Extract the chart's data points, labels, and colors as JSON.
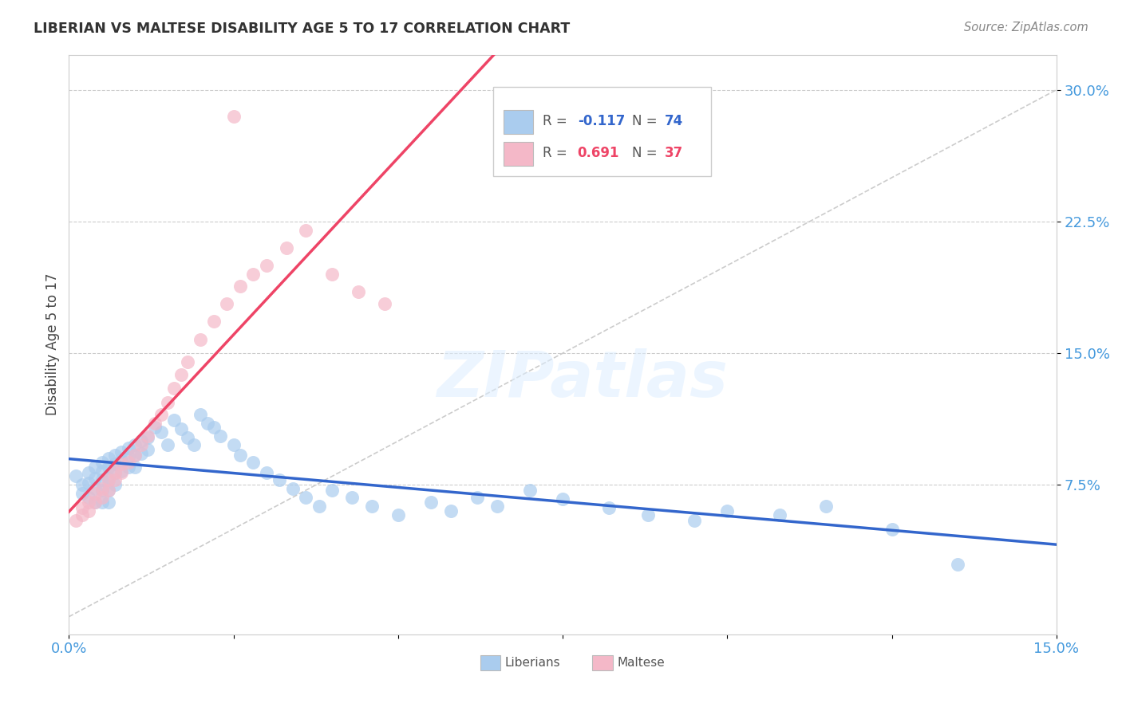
{
  "title": "LIBERIAN VS MALTESE DISABILITY AGE 5 TO 17 CORRELATION CHART",
  "source": "Source: ZipAtlas.com",
  "ylabel": "Disability Age 5 to 17",
  "xlim": [
    0.0,
    0.15
  ],
  "ylim": [
    -0.01,
    0.32
  ],
  "ytick_vals": [
    0.075,
    0.15,
    0.225,
    0.3
  ],
  "ytick_labels": [
    "7.5%",
    "15.0%",
    "22.5%",
    "30.0%"
  ],
  "xtick_vals": [
    0.0,
    0.025,
    0.05,
    0.075,
    0.1,
    0.125,
    0.15
  ],
  "xtick_labels": [
    "0.0%",
    "",
    "",
    "",
    "",
    "",
    "15.0%"
  ],
  "grid_color": "#cccccc",
  "liberian_color": "#aaccee",
  "maltese_color": "#f4b8c8",
  "liberian_line_color": "#3366cc",
  "maltese_line_color": "#ee4466",
  "dashed_line_color": "#cccccc",
  "legend_r_liberian": "-0.117",
  "legend_n_liberian": "74",
  "legend_r_maltese": "0.691",
  "legend_n_maltese": "37",
  "liberian_x": [
    0.001,
    0.002,
    0.002,
    0.003,
    0.003,
    0.003,
    0.004,
    0.004,
    0.004,
    0.004,
    0.005,
    0.005,
    0.005,
    0.005,
    0.005,
    0.006,
    0.006,
    0.006,
    0.006,
    0.006,
    0.007,
    0.007,
    0.007,
    0.007,
    0.008,
    0.008,
    0.008,
    0.009,
    0.009,
    0.009,
    0.01,
    0.01,
    0.01,
    0.011,
    0.011,
    0.012,
    0.012,
    0.013,
    0.014,
    0.015,
    0.016,
    0.017,
    0.018,
    0.019,
    0.02,
    0.021,
    0.022,
    0.023,
    0.025,
    0.026,
    0.028,
    0.03,
    0.032,
    0.034,
    0.036,
    0.038,
    0.04,
    0.043,
    0.046,
    0.05,
    0.055,
    0.058,
    0.062,
    0.065,
    0.07,
    0.075,
    0.082,
    0.088,
    0.095,
    0.1,
    0.108,
    0.115,
    0.125,
    0.135
  ],
  "liberian_y": [
    0.08,
    0.075,
    0.07,
    0.082,
    0.076,
    0.068,
    0.085,
    0.079,
    0.073,
    0.065,
    0.088,
    0.083,
    0.078,
    0.072,
    0.065,
    0.09,
    0.085,
    0.079,
    0.072,
    0.065,
    0.092,
    0.087,
    0.082,
    0.075,
    0.094,
    0.089,
    0.083,
    0.096,
    0.091,
    0.085,
    0.098,
    0.092,
    0.085,
    0.1,
    0.093,
    0.102,
    0.095,
    0.108,
    0.105,
    0.098,
    0.112,
    0.107,
    0.102,
    0.098,
    0.115,
    0.11,
    0.108,
    0.103,
    0.098,
    0.092,
    0.088,
    0.082,
    0.078,
    0.073,
    0.068,
    0.063,
    0.072,
    0.068,
    0.063,
    0.058,
    0.065,
    0.06,
    0.068,
    0.063,
    0.072,
    0.067,
    0.062,
    0.058,
    0.055,
    0.06,
    0.058,
    0.063,
    0.05,
    0.03
  ],
  "maltese_x": [
    0.001,
    0.002,
    0.002,
    0.003,
    0.003,
    0.004,
    0.004,
    0.005,
    0.005,
    0.006,
    0.006,
    0.007,
    0.007,
    0.008,
    0.008,
    0.009,
    0.01,
    0.011,
    0.012,
    0.013,
    0.014,
    0.015,
    0.016,
    0.017,
    0.018,
    0.02,
    0.022,
    0.024,
    0.026,
    0.028,
    0.03,
    0.033,
    0.036,
    0.04,
    0.044,
    0.048,
    0.025
  ],
  "maltese_y": [
    0.055,
    0.058,
    0.062,
    0.06,
    0.065,
    0.065,
    0.07,
    0.068,
    0.073,
    0.072,
    0.078,
    0.078,
    0.082,
    0.082,
    0.087,
    0.088,
    0.092,
    0.098,
    0.103,
    0.11,
    0.115,
    0.122,
    0.13,
    0.138,
    0.145,
    0.158,
    0.168,
    0.178,
    0.188,
    0.195,
    0.2,
    0.21,
    0.22,
    0.195,
    0.185,
    0.178,
    0.285
  ],
  "watermark": "ZIPatlas",
  "background_color": "#ffffff"
}
